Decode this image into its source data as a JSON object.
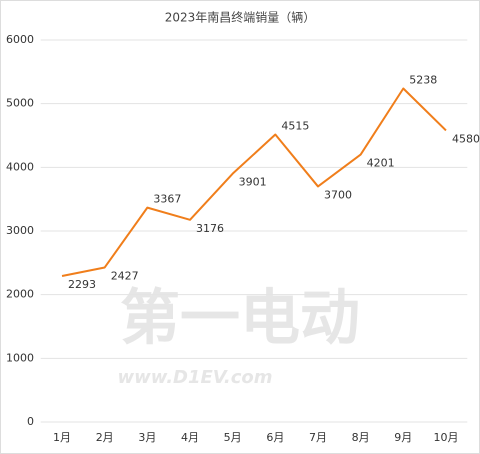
{
  "chart_data": {
    "type": "line",
    "title": "2023年南昌终端销量（辆）",
    "categories": [
      "1月",
      "2月",
      "3月",
      "4月",
      "5月",
      "6月",
      "7月",
      "8月",
      "9月",
      "10月"
    ],
    "series": [
      {
        "name": "销量",
        "color": "#f07e1b",
        "values": [
          2293,
          2427,
          3367,
          3176,
          3901,
          4515,
          3700,
          4201,
          5238,
          4580
        ]
      }
    ],
    "ylim": [
      0,
      6000
    ],
    "yticks": [
      0,
      1000,
      2000,
      3000,
      4000,
      5000,
      6000
    ],
    "grid": true,
    "watermark": {
      "brand": "第一电动",
      "url": "www.D1EV.com"
    }
  }
}
